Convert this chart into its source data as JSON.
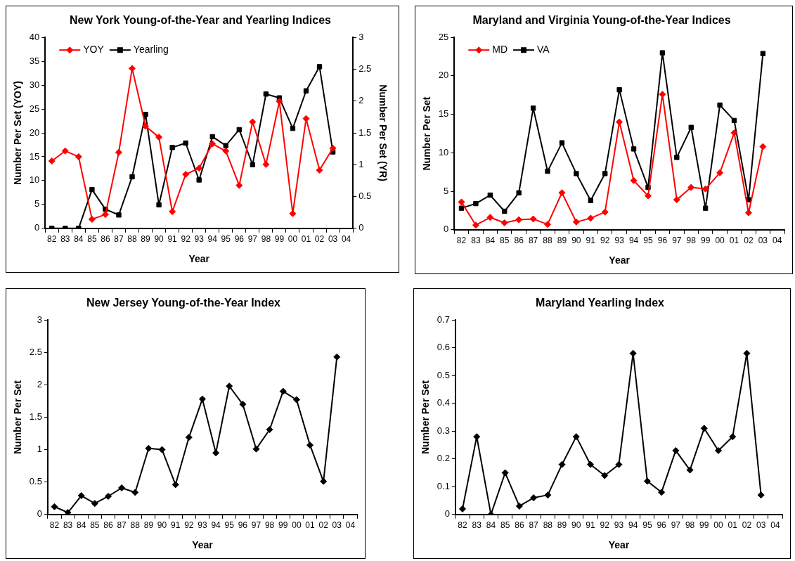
{
  "chart_data": [
    {
      "type": "line",
      "title": "New York Young-of-the-Year and Yearling Indices",
      "xlabel": "Year",
      "ylabel": "Number Per Set (YOY)",
      "y2label": "Number Per Set (YR)",
      "categories": [
        "82",
        "83",
        "84",
        "85",
        "86",
        "87",
        "88",
        "89",
        "90",
        "91",
        "92",
        "93",
        "94",
        "95",
        "96",
        "97",
        "98",
        "99",
        "00",
        "01",
        "02",
        "03",
        "04"
      ],
      "ylim": [
        0,
        40
      ],
      "yticks": [
        0,
        5,
        10,
        15,
        20,
        25,
        30,
        35,
        40
      ],
      "y2lim": [
        0,
        3
      ],
      "y2ticks": [
        0,
        0.5,
        1,
        1.5,
        2,
        2.5,
        3
      ],
      "grid": false,
      "legend": "top left",
      "series": [
        {
          "name": "YOY",
          "color": "#ff0000",
          "marker": "diamond",
          "values": [
            14.1,
            16.2,
            15,
            1.9,
            2.9,
            15.9,
            33.5,
            21.4,
            19.1,
            3.5,
            11.3,
            12.6,
            17.7,
            16.2,
            9,
            22.3,
            13.4,
            26.6,
            3.1,
            23,
            12.2,
            16.8,
            null
          ]
        },
        {
          "name": "Yearling",
          "color": "#000000",
          "marker": "square",
          "axis": "y2",
          "values": [
            0,
            0,
            0,
            0.61,
            0.3,
            0.21,
            0.81,
            1.79,
            0.37,
            1.27,
            1.34,
            0.76,
            1.44,
            1.3,
            1.55,
            1,
            2.11,
            2.05,
            1.57,
            2.16,
            2.54,
            1.2,
            null
          ]
        }
      ]
    },
    {
      "type": "line",
      "title": "Maryland and Virginia Young-of-the-Year Indices",
      "xlabel": "Year",
      "ylabel": "Number Per Set",
      "categories": [
        "82",
        "83",
        "84",
        "85",
        "86",
        "87",
        "88",
        "89",
        "90",
        "91",
        "92",
        "93",
        "94",
        "95",
        "96",
        "97",
        "98",
        "99",
        "00",
        "01",
        "02",
        "03",
        "04"
      ],
      "ylim": [
        0,
        25
      ],
      "yticks": [
        0,
        5,
        10,
        15,
        20,
        25
      ],
      "grid": false,
      "legend": "top left",
      "series": [
        {
          "name": "MD",
          "color": "#ff0000",
          "marker": "diamond",
          "values": [
            3.6,
            0.6,
            1.6,
            0.9,
            1.3,
            1.4,
            0.7,
            4.8,
            1,
            1.5,
            2.3,
            14,
            6.4,
            4.4,
            17.6,
            3.9,
            5.5,
            5.3,
            7.4,
            12.6,
            2.2,
            10.8,
            null
          ]
        },
        {
          "name": "VA",
          "color": "#000000",
          "marker": "square",
          "values": [
            2.8,
            3.4,
            4.5,
            2.4,
            4.8,
            15.8,
            7.6,
            11.3,
            7.3,
            3.8,
            7.3,
            18.2,
            10.5,
            5.5,
            23,
            9.4,
            13.3,
            2.8,
            16.2,
            14.2,
            3.9,
            22.9,
            null
          ]
        }
      ]
    },
    {
      "type": "line",
      "title": "New Jersey Young-of-the-Year Index",
      "xlabel": "Year",
      "ylabel": "Number Per Set",
      "categories": [
        "82",
        "83",
        "84",
        "85",
        "86",
        "87",
        "88",
        "89",
        "90",
        "91",
        "92",
        "93",
        "94",
        "95",
        "96",
        "97",
        "98",
        "99",
        "00",
        "01",
        "02",
        "03",
        "04"
      ],
      "ylim": [
        0,
        3
      ],
      "yticks": [
        0,
        0.5,
        1,
        1.5,
        2,
        2.5,
        3
      ],
      "grid": false,
      "legend": false,
      "marker": "diamond",
      "series": [
        {
          "color": "#000000",
          "values": [
            0.12,
            0.03,
            0.29,
            0.17,
            0.28,
            0.41,
            0.34,
            1.02,
            1,
            0.46,
            1.19,
            1.78,
            0.95,
            1.98,
            1.7,
            1.01,
            1.31,
            1.9,
            1.77,
            1.07,
            0.51,
            2.43,
            null
          ]
        }
      ]
    },
    {
      "type": "line",
      "title": "Maryland Yearling Index",
      "xlabel": "Year",
      "ylabel": "Number Per Set",
      "categories": [
        "82",
        "83",
        "84",
        "85",
        "86",
        "87",
        "88",
        "89",
        "90",
        "91",
        "92",
        "93",
        "94",
        "95",
        "96",
        "97",
        "98",
        "99",
        "00",
        "01",
        "02",
        "03",
        "04"
      ],
      "ylim": [
        0,
        0.7
      ],
      "yticks": [
        0,
        0.1,
        0.2,
        0.3,
        0.4,
        0.5,
        0.6,
        0.7
      ],
      "grid": false,
      "legend": false,
      "marker": "diamond",
      "series": [
        {
          "color": "#000000",
          "values": [
            0.02,
            0.28,
            0,
            0.15,
            0.03,
            0.06,
            0.07,
            0.18,
            0.28,
            0.18,
            0.14,
            0.18,
            0.58,
            0.12,
            0.08,
            0.23,
            0.16,
            0.31,
            0.23,
            0.28,
            0.58,
            0.07,
            null
          ]
        }
      ]
    }
  ]
}
